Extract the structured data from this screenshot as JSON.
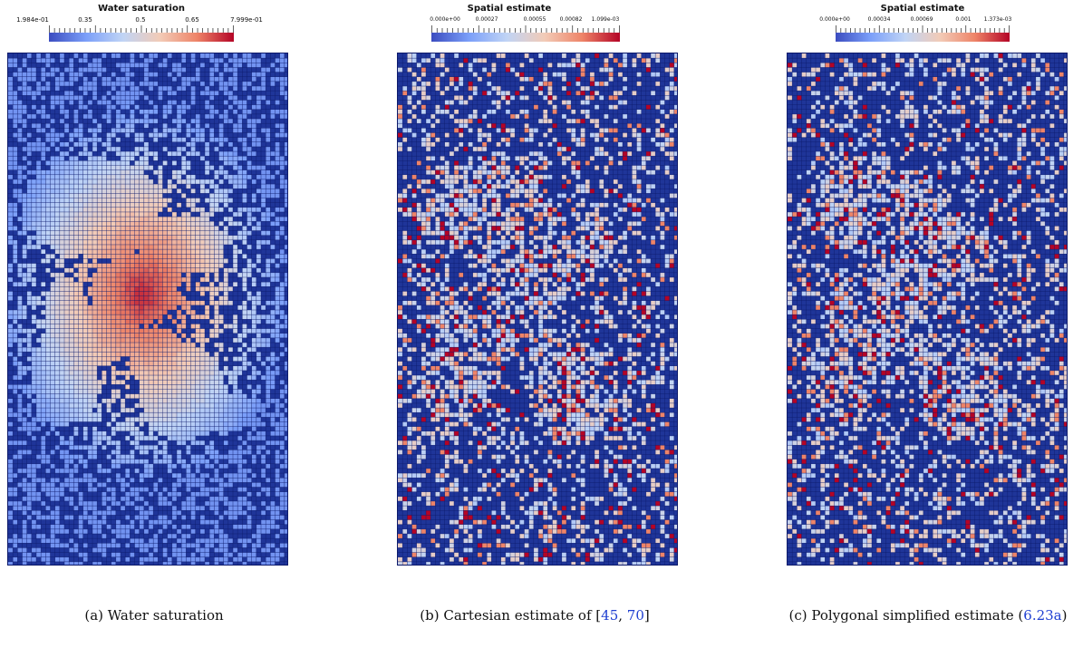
{
  "panels": [
    {
      "colorbar": {
        "title": "Water saturation",
        "tick_labels": [
          "1.984e-01",
          "0.35",
          "0.5",
          "0.65",
          "7.999e-01"
        ]
      },
      "field_icon": "saturation-field-grid",
      "caption": {
        "label": "(a)",
        "text": "Water saturation",
        "refs": []
      }
    },
    {
      "colorbar": {
        "title": "Spatial estimate",
        "tick_labels": [
          "0.000e+00",
          "0.00027",
          "0.00055",
          "0.00082",
          "1.099e-03"
        ]
      },
      "field_icon": "estimate-field-grid",
      "caption": {
        "label": "(b)",
        "text": "Cartesian estimate of",
        "refs": [
          "45",
          "70"
        ]
      }
    },
    {
      "colorbar": {
        "title": "Spatial estimate",
        "tick_labels": [
          "0.000e+00",
          "0.00034",
          "0.00069",
          "0.001",
          "1.373e-03"
        ]
      },
      "field_icon": "estimate-field-grid",
      "caption": {
        "label": "(c)",
        "text": "Polygonal simplified estimate",
        "refs": [
          "6.23a"
        ]
      }
    }
  ],
  "colors": {
    "colormap": [
      "#3b4cc0",
      "#7b9ff9",
      "#c0d4f5",
      "#f2cbb7",
      "#ee8468",
      "#b40426"
    ],
    "background_cell": "#1f3599",
    "grid_line": "#0d1a6b",
    "reference_link": "#1f3fd1"
  }
}
